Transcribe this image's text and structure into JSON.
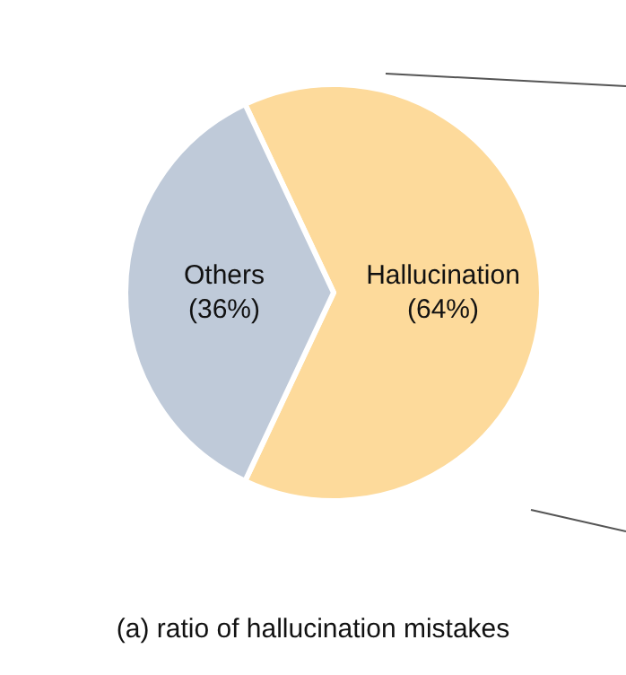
{
  "chart_data": {
    "type": "pie",
    "title": "(a) ratio of hallucination mistakes",
    "categories": [
      "Hallucination",
      "Others"
    ],
    "values": [
      64,
      36
    ],
    "colors": [
      "#fdda9b",
      "#bfcad9"
    ],
    "value_labels": [
      "(64%)",
      "(36%)"
    ]
  }
}
